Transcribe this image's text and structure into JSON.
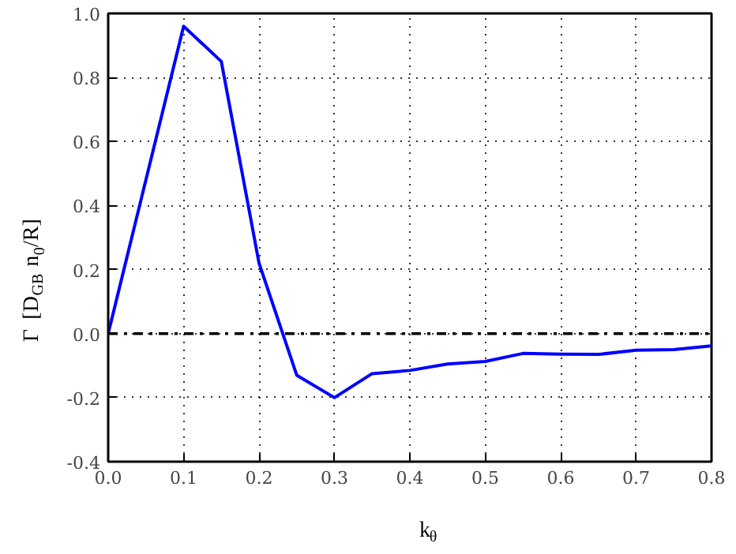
{
  "chart_data": {
    "type": "line",
    "xlabel": "k$_{θ}$",
    "ylabel": "Γ [D$_{GB}$ n$_{0}$/R]",
    "x": [
      0,
      0.1,
      0.15,
      0.2,
      0.25,
      0.3,
      0.35,
      0.4,
      0.45,
      0.5,
      0.55,
      0.6,
      0.65,
      0.7,
      0.75,
      0.8
    ],
    "series": [
      {
        "color": "#0000ff",
        "values": [
          0,
          0.96,
          0.85,
          0.22,
          -0.13,
          -0.2,
          -0.125,
          -0.115,
          -0.095,
          -0.087,
          -0.062,
          -0.064,
          -0.065,
          -0.052,
          -0.05,
          -0.038
        ]
      }
    ],
    "xlim": [
      0,
      0.8
    ],
    "ylim": [
      -0.4,
      1.0
    ],
    "xticks": [
      {
        "value": 0,
        "label": "0.0"
      },
      0.1,
      0.2,
      0.3,
      0.4,
      0.5,
      0.6,
      0.7,
      0.8
    ],
    "yticks": [
      -0.4,
      -0.2,
      {
        "value": 0,
        "label": "0.0"
      },
      0.2,
      0.4,
      0.6,
      0.8,
      {
        "value": 1,
        "label": "1.0"
      }
    ],
    "ref_lines": [
      {
        "axis": "y",
        "value": 0,
        "color": "#000000",
        "line_style": "dashdot"
      }
    ],
    "grid": true,
    "line_style": "solid",
    "marker": "none"
  }
}
